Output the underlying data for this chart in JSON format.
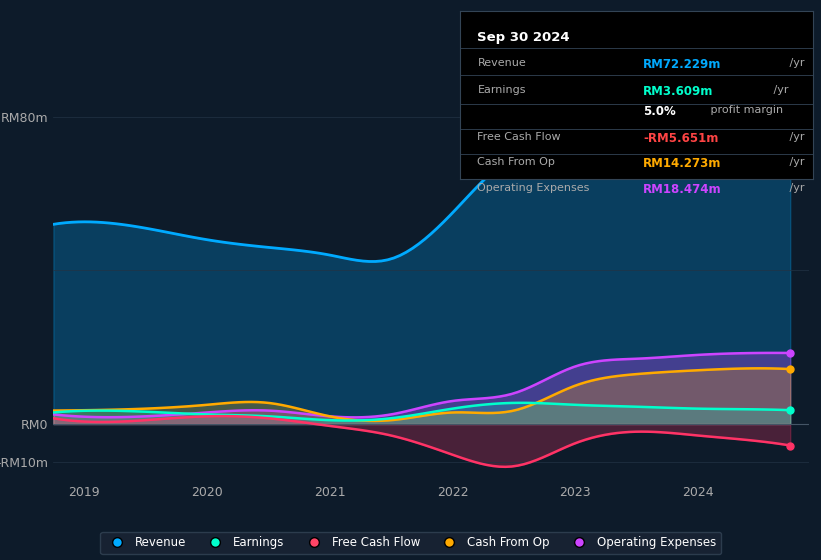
{
  "bg_color": "#0d1b2a",
  "plot_bg_color": "#0d1b2a",
  "title_box": {
    "date": "Sep 30 2024",
    "rows": [
      {
        "label": "Revenue",
        "value": "RM72.229m",
        "suffix": " /yr",
        "color": "#00aaff"
      },
      {
        "label": "Earnings",
        "value": "RM3.609m",
        "suffix": " /yr",
        "color": "#00ffcc"
      },
      {
        "label": "",
        "value": "5.0%",
        "suffix": " profit margin",
        "color": "#ffffff"
      },
      {
        "label": "Free Cash Flow",
        "value": "-RM5.651m",
        "suffix": " /yr",
        "color": "#ff4444"
      },
      {
        "label": "Cash From Op",
        "value": "RM14.273m",
        "suffix": " /yr",
        "color": "#ffaa00"
      },
      {
        "label": "Operating Expenses",
        "value": "RM18.474m",
        "suffix": " /yr",
        "color": "#cc44ff"
      }
    ]
  },
  "ylim": [
    -15,
    90
  ],
  "yticks": [
    -10,
    0,
    80
  ],
  "ytick_labels": [
    "-RM10m",
    "RM0",
    "RM80m"
  ],
  "years": [
    2019,
    2020,
    2021,
    2022,
    2023,
    2024
  ],
  "x": [
    0,
    1,
    2,
    3,
    4,
    5,
    5.5
  ],
  "revenue": [
    52,
    46,
    43,
    68,
    73,
    71,
    72
  ],
  "earnings": [
    3,
    2.5,
    1,
    4,
    5.5,
    4,
    3.6
  ],
  "fcf": [
    1,
    2,
    -3,
    -11,
    -2,
    -3,
    -5.6
  ],
  "cash_op": [
    4,
    5,
    1,
    3,
    10,
    13,
    14.3
  ],
  "op_expenses": [
    2,
    3,
    2,
    6,
    15,
    18,
    18.5
  ],
  "legend": [
    {
      "label": "Revenue",
      "color": "#00aaff"
    },
    {
      "label": "Earnings",
      "color": "#00ffcc"
    },
    {
      "label": "Free Cash Flow",
      "color": "#ff4466"
    },
    {
      "label": "Cash From Op",
      "color": "#ffaa00"
    },
    {
      "label": "Operating Expenses",
      "color": "#cc44ff"
    }
  ]
}
